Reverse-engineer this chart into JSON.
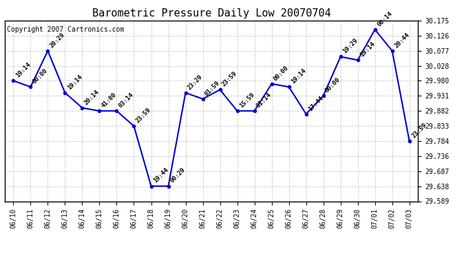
{
  "title": "Barometric Pressure Daily Low 20070704",
  "copyright": "Copyright 2007 Cartronics.com",
  "dates": [
    "06/10",
    "06/11",
    "06/12",
    "06/13",
    "06/14",
    "06/15",
    "06/16",
    "06/17",
    "06/18",
    "06/19",
    "06/20",
    "06/21",
    "06/22",
    "06/23",
    "06/24",
    "06/25",
    "06/26",
    "06/27",
    "06/28",
    "06/29",
    "06/30",
    "07/01",
    "07/02",
    "07/03"
  ],
  "values": [
    29.98,
    29.96,
    30.077,
    29.941,
    29.892,
    29.882,
    29.882,
    29.833,
    29.638,
    29.638,
    29.941,
    29.921,
    29.951,
    29.882,
    29.882,
    29.97,
    29.96,
    29.872,
    29.931,
    30.058,
    30.047,
    30.146,
    30.077,
    29.784
  ],
  "times": [
    "19:14",
    "00:00",
    "20:29",
    "19:14",
    "20:14",
    "41:00",
    "03:14",
    "23:59",
    "19:44",
    "00:29",
    "23:29",
    "01:59",
    "23:59",
    "15:59",
    "01:14",
    "00:00",
    "19:14",
    "17:44",
    "00:00",
    "19:29",
    "19:14",
    "00:14",
    "20:44",
    "23:59"
  ],
  "ylim_min": 29.589,
  "ylim_max": 30.175,
  "yticks": [
    29.589,
    29.638,
    29.687,
    29.736,
    29.784,
    29.833,
    29.882,
    29.931,
    29.98,
    30.028,
    30.077,
    30.126,
    30.175
  ],
  "line_color": "#0000CC",
  "marker_color": "#0000CC",
  "bg_color": "#FFFFFF",
  "grid_color": "#BBBBBB",
  "title_fontsize": 11,
  "label_fontsize": 6.5,
  "tick_fontsize": 7,
  "copyright_fontsize": 7
}
